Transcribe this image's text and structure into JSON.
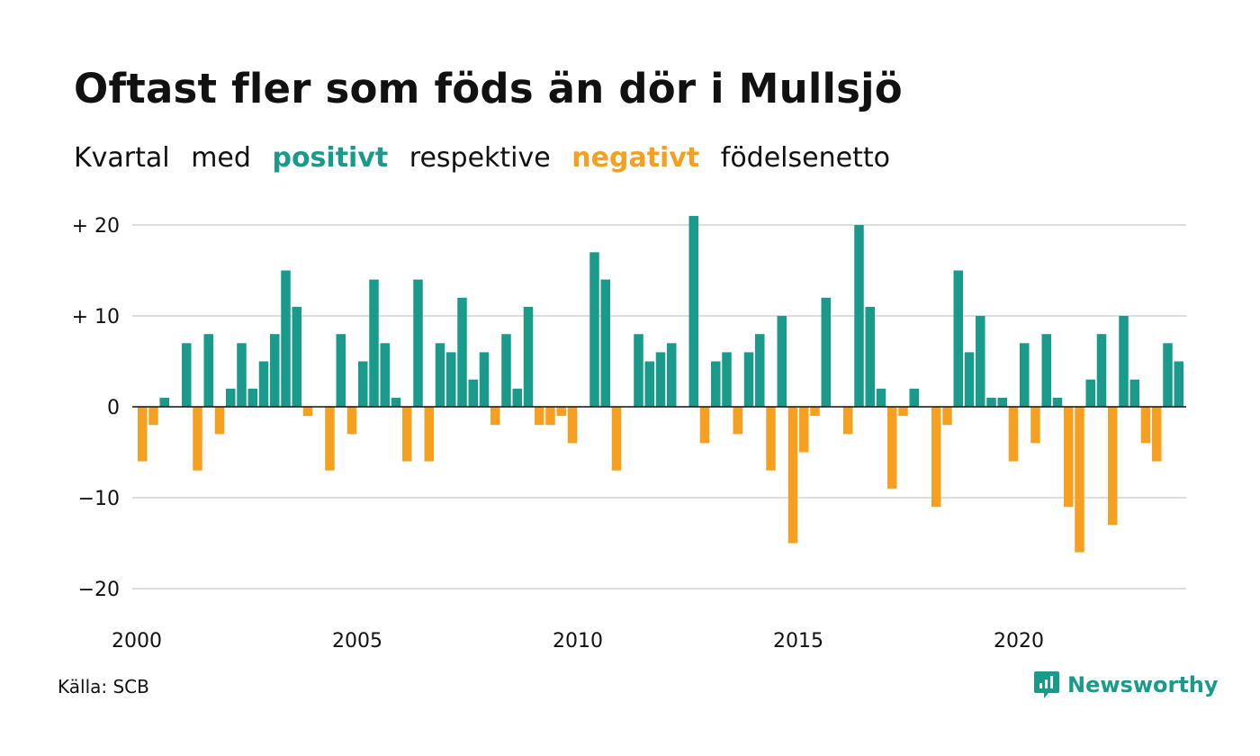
{
  "title": "Oftast fler som föds än dör i Mullsjö",
  "subtitle": {
    "w1": "Kvartal",
    "w2": "med",
    "positive": "positivt",
    "w3": "respektive",
    "negative": "negativt",
    "w4": "födelsenetto"
  },
  "source": "Källa: SCB",
  "brand": "Newsworthy",
  "colors": {
    "positive": "#1a9a8a",
    "negative": "#f5a020",
    "grid": "#dddddd"
  },
  "chart_data": {
    "type": "bar",
    "x_start": "2000-Q1",
    "quarters_per_year": 4,
    "ylim": [
      -22,
      21
    ],
    "yticks": [
      20,
      10,
      0,
      -10,
      -20
    ],
    "ytick_labels": [
      "+ 20",
      "+ 10",
      "0",
      "−10",
      "−20"
    ],
    "xtick_labels": [
      "2000",
      "2005",
      "2010",
      "2015",
      "2020"
    ],
    "grid": true,
    "values": [
      -6,
      -2,
      1,
      0,
      7,
      -7,
      8,
      -3,
      2,
      7,
      2,
      5,
      8,
      15,
      11,
      -1,
      0,
      -7,
      8,
      -3,
      5,
      14,
      7,
      1,
      -6,
      14,
      -6,
      7,
      6,
      12,
      3,
      6,
      -2,
      8,
      2,
      11,
      -2,
      -2,
      -1,
      -4,
      0,
      17,
      14,
      -7,
      0,
      8,
      5,
      6,
      7,
      0,
      21,
      -4,
      5,
      6,
      -3,
      6,
      8,
      -7,
      10,
      -15,
      -5,
      -1,
      12,
      0,
      -3,
      20,
      11,
      2,
      -9,
      -1,
      2,
      0,
      -11,
      -2,
      15,
      6,
      10,
      1,
      1,
      -6,
      7,
      -4,
      8,
      1,
      -11,
      -16,
      3,
      8,
      -13,
      10,
      3,
      -4,
      -6,
      7,
      5
    ]
  }
}
